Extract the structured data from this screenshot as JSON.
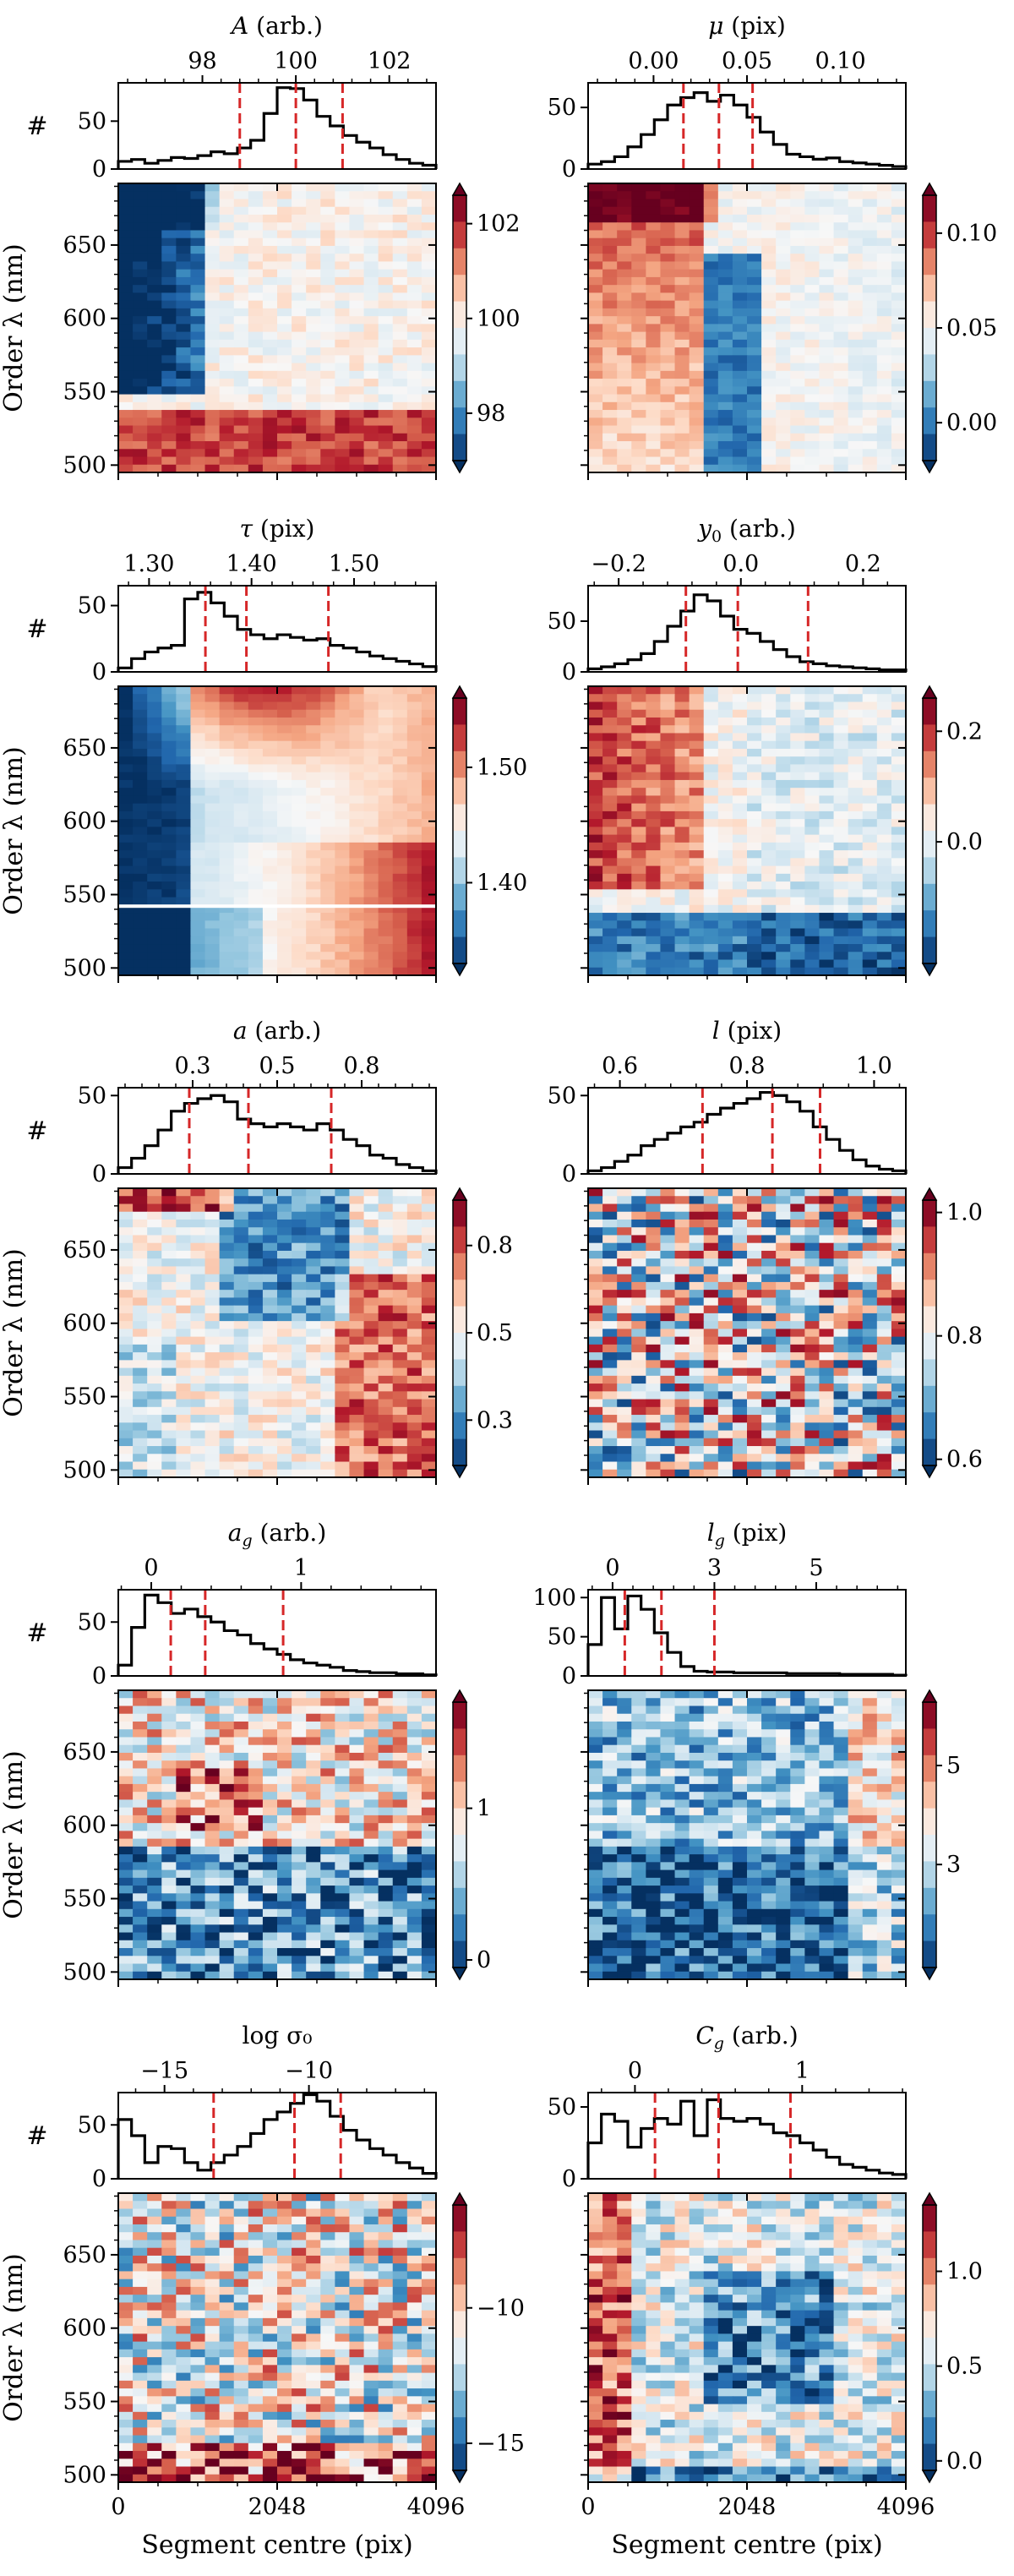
{
  "figure": {
    "x_axis_label": "Segment centre (pix)",
    "y_axis_label": "Order λ (nm)",
    "hist_ylabel": "#",
    "x_ticks": [
      0,
      2048,
      4096
    ],
    "y_ticks": [
      500,
      550,
      600,
      650
    ],
    "y_range": [
      495,
      692
    ],
    "x_range": [
      0,
      4096
    ],
    "n_rows": 37,
    "n_cols": 22,
    "median_line_color": "#d62728",
    "colormap": "RdBu_r",
    "colormap_stops": [
      "#053061",
      "#2166ac",
      "#4393c3",
      "#92c5de",
      "#d1e5f0",
      "#f7f7f7",
      "#fddbc7",
      "#f4a582",
      "#d6604d",
      "#b2182b",
      "#67001f"
    ]
  },
  "chart_data": [
    {
      "id": "A",
      "type": "heatmap+histogram",
      "title": "A (arb.)",
      "hist_xlim": [
        96.2,
        103.0
      ],
      "hist_ylim": [
        0,
        90
      ],
      "hist_xticks": [
        98,
        100,
        102
      ],
      "hist_yticks": [
        0,
        50
      ],
      "hist_counts": [
        8,
        10,
        6,
        9,
        12,
        11,
        14,
        18,
        16,
        22,
        30,
        58,
        85,
        84,
        72,
        55,
        45,
        35,
        28,
        22,
        15,
        10,
        6,
        4
      ],
      "median_lines": [
        98.8,
        100.0,
        101.0
      ],
      "clim": [
        97.0,
        102.6
      ],
      "cbar_ticks": [
        98,
        100,
        102
      ],
      "field": "A",
      "seed": 11
    },
    {
      "id": "mu",
      "type": "heatmap+histogram",
      "title": "μ (pix)",
      "hist_xlim": [
        -0.035,
        0.135
      ],
      "hist_ylim": [
        0,
        70
      ],
      "hist_xticks": [
        0.0,
        0.05,
        0.1
      ],
      "hist_yticks": [
        0,
        50
      ],
      "hist_counts": [
        4,
        6,
        10,
        18,
        28,
        40,
        52,
        58,
        62,
        55,
        60,
        52,
        42,
        30,
        20,
        12,
        10,
        8,
        9,
        6,
        5,
        4,
        3,
        2
      ],
      "median_lines": [
        0.016,
        0.035,
        0.053
      ],
      "clim": [
        -0.02,
        0.12
      ],
      "cbar_ticks": [
        0.0,
        0.05,
        0.1
      ],
      "field": "mu",
      "seed": 23
    },
    {
      "id": "tau",
      "type": "heatmap+histogram",
      "title": "τ (pix)",
      "hist_xlim": [
        1.27,
        1.58
      ],
      "hist_ylim": [
        0,
        65
      ],
      "hist_xticks": [
        1.3,
        1.4,
        1.5
      ],
      "hist_yticks": [
        0,
        50
      ],
      "hist_counts": [
        3,
        10,
        15,
        18,
        20,
        55,
        60,
        52,
        42,
        32,
        28,
        25,
        28,
        26,
        24,
        25,
        20,
        18,
        15,
        12,
        10,
        8,
        6,
        4
      ],
      "median_lines": [
        1.355,
        1.395,
        1.475
      ],
      "clim": [
        1.33,
        1.56
      ],
      "cbar_ticks": [
        1.4,
        1.5
      ],
      "field": "tau",
      "seed": 37
    },
    {
      "id": "y0",
      "type": "heatmap+histogram",
      "title": "y₀ (arb.)",
      "hist_xlim": [
        -0.25,
        0.27
      ],
      "hist_ylim": [
        0,
        85
      ],
      "hist_xticks": [
        -0.2,
        0.0,
        0.2
      ],
      "hist_yticks": [
        0,
        50
      ],
      "hist_counts": [
        3,
        5,
        8,
        12,
        18,
        30,
        45,
        60,
        76,
        70,
        55,
        42,
        38,
        30,
        22,
        15,
        10,
        8,
        6,
        5,
        4,
        3,
        2,
        2
      ],
      "median_lines": [
        -0.09,
        -0.005,
        0.11
      ],
      "clim": [
        -0.22,
        0.26
      ],
      "cbar_ticks": [
        0.0,
        0.2
      ],
      "field": "y0",
      "seed": 41
    },
    {
      "id": "a",
      "type": "heatmap+histogram",
      "title": "a (arb.)",
      "hist_xlim": [
        0.03,
        0.97
      ],
      "hist_ylim": [
        0,
        55
      ],
      "hist_xticks": [
        0.25,
        0.5,
        0.75
      ],
      "hist_yticks": [
        0,
        50
      ],
      "hist_counts": [
        4,
        10,
        18,
        28,
        40,
        45,
        48,
        50,
        46,
        35,
        32,
        30,
        32,
        30,
        28,
        32,
        28,
        22,
        18,
        12,
        10,
        6,
        4,
        2
      ],
      "median_lines": [
        0.24,
        0.415,
        0.66
      ],
      "clim": [
        0.12,
        0.88
      ],
      "cbar_ticks": [
        0.25,
        0.5,
        0.75
      ],
      "field": "a",
      "seed": 53
    },
    {
      "id": "l",
      "type": "heatmap+histogram",
      "title": "l (pix)",
      "hist_xlim": [
        0.55,
        1.05
      ],
      "hist_ylim": [
        0,
        55
      ],
      "hist_xticks": [
        0.6,
        0.8,
        1.0
      ],
      "hist_yticks": [
        0,
        50
      ],
      "hist_counts": [
        2,
        4,
        8,
        12,
        18,
        22,
        26,
        30,
        33,
        38,
        42,
        45,
        48,
        52,
        50,
        46,
        40,
        30,
        22,
        15,
        9,
        5,
        3,
        2
      ],
      "median_lines": [
        0.73,
        0.84,
        0.915
      ],
      "clim": [
        0.59,
        1.02
      ],
      "cbar_ticks": [
        0.6,
        0.8,
        1.0
      ],
      "field": "l",
      "seed": 67
    },
    {
      "id": "ag",
      "type": "heatmap+histogram",
      "title": "a_g (arb.)",
      "hist_xlim": [
        -0.22,
        1.9
      ],
      "hist_ylim": [
        0,
        80
      ],
      "hist_xticks": [
        0,
        1
      ],
      "hist_yticks": [
        0,
        50
      ],
      "hist_counts": [
        10,
        45,
        75,
        68,
        58,
        62,
        55,
        50,
        42,
        38,
        30,
        25,
        20,
        15,
        12,
        10,
        8,
        5,
        4,
        3,
        3,
        2,
        2,
        1
      ],
      "median_lines": [
        0.13,
        0.36,
        0.88
      ],
      "clim": [
        -0.05,
        1.7
      ],
      "cbar_ticks": [
        0,
        1
      ],
      "field": "ag",
      "seed": 79
    },
    {
      "id": "lg",
      "type": "heatmap+histogram",
      "title": "l_g (pix)",
      "hist_xlim": [
        -0.6,
        7.2
      ],
      "hist_ylim": [
        0,
        110
      ],
      "hist_xticks": [
        0.0,
        2.5,
        5.0
      ],
      "hist_yticks": [
        0,
        50,
        100
      ],
      "hist_counts": [
        40,
        100,
        60,
        102,
        85,
        55,
        30,
        12,
        6,
        5,
        5,
        4,
        4,
        4,
        4,
        3,
        3,
        3,
        3,
        2,
        2,
        2,
        2,
        1
      ],
      "median_lines": [
        0.3,
        1.2,
        2.5
      ],
      "clim": [
        -0.1,
        6.6
      ],
      "cbar_ticks": [
        2.5,
        5.0
      ],
      "field": "lg",
      "seed": 83
    },
    {
      "id": "logsig",
      "type": "heatmap+histogram",
      "title": "log σ₀",
      "hist_xlim": [
        -16.6,
        -5.6
      ],
      "hist_ylim": [
        0,
        80
      ],
      "hist_xticks": [
        -15,
        -10
      ],
      "hist_yticks": [
        0,
        50
      ],
      "hist_counts": [
        55,
        40,
        15,
        30,
        28,
        15,
        8,
        15,
        22,
        30,
        42,
        55,
        62,
        70,
        78,
        72,
        58,
        45,
        36,
        28,
        22,
        15,
        10,
        5
      ],
      "median_lines": [
        -13.3,
        -10.5,
        -8.9
      ],
      "clim": [
        -16.0,
        -6.2
      ],
      "cbar_ticks": [
        -15,
        -10
      ],
      "field": "logsig",
      "seed": 97
    },
    {
      "id": "Cg",
      "type": "heatmap+histogram",
      "title": "C_g (arb.)",
      "hist_xlim": [
        -0.28,
        1.62
      ],
      "hist_ylim": [
        0,
        60
      ],
      "hist_xticks": [
        0,
        1
      ],
      "hist_yticks": [
        0,
        50
      ],
      "hist_counts": [
        25,
        45,
        40,
        22,
        35,
        42,
        38,
        54,
        30,
        55,
        42,
        40,
        42,
        38,
        32,
        30,
        25,
        20,
        15,
        10,
        8,
        6,
        4,
        3
      ],
      "median_lines": [
        0.12,
        0.5,
        0.93
      ],
      "clim": [
        -0.05,
        1.35
      ],
      "cbar_ticks": [
        0.0,
        0.5,
        1.0
      ],
      "field": "Cg",
      "seed": 101
    }
  ]
}
